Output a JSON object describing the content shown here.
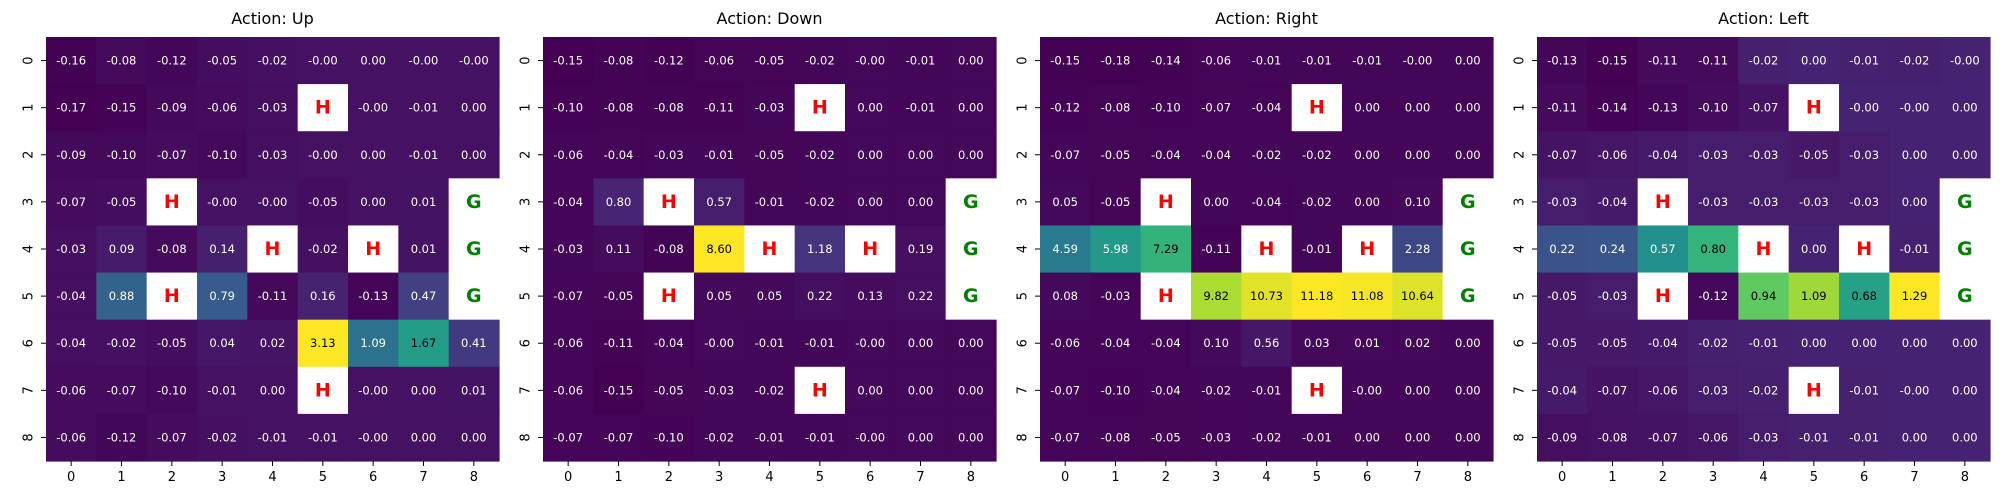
{
  "chart_data": [
    {
      "type": "heatmap",
      "title": "Action: Up",
      "x_ticks": [
        "0",
        "1",
        "2",
        "3",
        "4",
        "5",
        "6",
        "7",
        "8"
      ],
      "y_ticks": [
        "0",
        "1",
        "2",
        "3",
        "4",
        "5",
        "6",
        "7",
        "8"
      ],
      "colormap": "viridis",
      "hole_color": "#ffffff",
      "hole_label_color": "#ff0000",
      "goal_label_color": "#008000",
      "cells": [
        [
          "-0.16",
          "-0.08",
          "-0.12",
          "-0.05",
          "-0.02",
          "-0.00",
          "0.00",
          "-0.00",
          "-0.00"
        ],
        [
          "-0.17",
          "-0.15",
          "-0.09",
          "-0.06",
          "-0.03",
          "H",
          "-0.00",
          "-0.01",
          "0.00"
        ],
        [
          "-0.09",
          "-0.10",
          "-0.07",
          "-0.10",
          "-0.03",
          "-0.00",
          "0.00",
          "-0.01",
          "0.00"
        ],
        [
          "-0.07",
          "-0.05",
          "H",
          "-0.00",
          "-0.00",
          "-0.05",
          "0.00",
          "0.01",
          "G"
        ],
        [
          "-0.03",
          "0.09",
          "-0.08",
          "0.14",
          "H",
          "-0.02",
          "H",
          "0.01",
          "G"
        ],
        [
          "-0.04",
          "0.88",
          "H",
          "0.79",
          "-0.11",
          "0.16",
          "-0.13",
          "0.47",
          "G"
        ],
        [
          "-0.04",
          "-0.02",
          "-0.05",
          "0.04",
          "0.02",
          "3.13",
          "1.09",
          "1.67",
          "0.41"
        ],
        [
          "-0.06",
          "-0.07",
          "-0.10",
          "-0.01",
          "0.00",
          "H",
          "-0.00",
          "0.00",
          "0.01"
        ],
        [
          "-0.06",
          "-0.12",
          "-0.07",
          "-0.02",
          "-0.01",
          "-0.01",
          "-0.00",
          "0.00",
          "0.00"
        ]
      ]
    },
    {
      "type": "heatmap",
      "title": "Action: Down",
      "x_ticks": [
        "0",
        "1",
        "2",
        "3",
        "4",
        "5",
        "6",
        "7",
        "8"
      ],
      "y_ticks": [
        "0",
        "1",
        "2",
        "3",
        "4",
        "5",
        "6",
        "7",
        "8"
      ],
      "colormap": "viridis",
      "hole_color": "#ffffff",
      "hole_label_color": "#ff0000",
      "goal_label_color": "#008000",
      "cells": [
        [
          "-0.15",
          "-0.08",
          "-0.12",
          "-0.06",
          "-0.05",
          "-0.02",
          "-0.00",
          "-0.01",
          "0.00"
        ],
        [
          "-0.10",
          "-0.08",
          "-0.08",
          "-0.11",
          "-0.03",
          "H",
          "0.00",
          "-0.01",
          "0.00"
        ],
        [
          "-0.06",
          "-0.04",
          "-0.03",
          "-0.01",
          "-0.05",
          "-0.02",
          "0.00",
          "0.00",
          "0.00"
        ],
        [
          "-0.04",
          "0.80",
          "H",
          "0.57",
          "-0.01",
          "-0.02",
          "0.00",
          "0.00",
          "G"
        ],
        [
          "-0.03",
          "0.11",
          "-0.08",
          "8.60",
          "H",
          "1.18",
          "H",
          "0.19",
          "G"
        ],
        [
          "-0.07",
          "-0.05",
          "H",
          "0.05",
          "0.05",
          "0.22",
          "0.13",
          "0.22",
          "G"
        ],
        [
          "-0.06",
          "-0.11",
          "-0.04",
          "-0.00",
          "-0.01",
          "-0.01",
          "-0.00",
          "0.00",
          "0.00"
        ],
        [
          "-0.06",
          "-0.15",
          "-0.05",
          "-0.03",
          "-0.02",
          "H",
          "0.00",
          "0.00",
          "0.00"
        ],
        [
          "-0.07",
          "-0.07",
          "-0.10",
          "-0.02",
          "-0.01",
          "-0.01",
          "-0.00",
          "0.00",
          "0.00"
        ]
      ]
    },
    {
      "type": "heatmap",
      "title": "Action: Right",
      "x_ticks": [
        "0",
        "1",
        "2",
        "3",
        "4",
        "5",
        "6",
        "7",
        "8"
      ],
      "y_ticks": [
        "0",
        "1",
        "2",
        "3",
        "4",
        "5",
        "6",
        "7",
        "8"
      ],
      "colormap": "viridis",
      "hole_color": "#ffffff",
      "hole_label_color": "#ff0000",
      "goal_label_color": "#008000",
      "cells": [
        [
          "-0.15",
          "-0.18",
          "-0.14",
          "-0.06",
          "-0.01",
          "-0.01",
          "-0.01",
          "-0.00",
          "0.00"
        ],
        [
          "-0.12",
          "-0.08",
          "-0.10",
          "-0.07",
          "-0.04",
          "H",
          "0.00",
          "0.00",
          "0.00"
        ],
        [
          "-0.07",
          "-0.05",
          "-0.04",
          "-0.04",
          "-0.02",
          "-0.02",
          "0.00",
          "0.00",
          "0.00"
        ],
        [
          "0.05",
          "-0.05",
          "H",
          "0.00",
          "-0.04",
          "-0.02",
          "0.00",
          "0.10",
          "G"
        ],
        [
          "4.59",
          "5.98",
          "7.29",
          "-0.11",
          "H",
          "-0.01",
          "H",
          "2.28",
          "G"
        ],
        [
          "0.08",
          "-0.03",
          "H",
          "9.82",
          "10.73",
          "11.18",
          "11.08",
          "10.64",
          "G"
        ],
        [
          "-0.06",
          "-0.04",
          "-0.04",
          "0.10",
          "0.56",
          "0.03",
          "0.01",
          "0.02",
          "0.00"
        ],
        [
          "-0.07",
          "-0.10",
          "-0.04",
          "-0.02",
          "-0.01",
          "H",
          "-0.00",
          "0.00",
          "0.00"
        ],
        [
          "-0.07",
          "-0.08",
          "-0.05",
          "-0.03",
          "-0.02",
          "-0.01",
          "0.00",
          "0.00",
          "0.00"
        ]
      ]
    },
    {
      "type": "heatmap",
      "title": "Action: Left",
      "x_ticks": [
        "0",
        "1",
        "2",
        "3",
        "4",
        "5",
        "6",
        "7",
        "8"
      ],
      "y_ticks": [
        "0",
        "1",
        "2",
        "3",
        "4",
        "5",
        "6",
        "7",
        "8"
      ],
      "colormap": "viridis",
      "hole_color": "#ffffff",
      "hole_label_color": "#ff0000",
      "goal_label_color": "#008000",
      "cells": [
        [
          "-0.13",
          "-0.15",
          "-0.11",
          "-0.11",
          "-0.02",
          "0.00",
          "-0.01",
          "-0.02",
          "-0.00"
        ],
        [
          "-0.11",
          "-0.14",
          "-0.13",
          "-0.10",
          "-0.07",
          "H",
          "-0.00",
          "-0.00",
          "0.00"
        ],
        [
          "-0.07",
          "-0.06",
          "-0.04",
          "-0.03",
          "-0.03",
          "-0.05",
          "-0.03",
          "0.00",
          "0.00"
        ],
        [
          "-0.03",
          "-0.04",
          "H",
          "-0.03",
          "-0.03",
          "-0.03",
          "-0.03",
          "0.00",
          "G"
        ],
        [
          "0.22",
          "0.24",
          "0.57",
          "0.80",
          "H",
          "0.00",
          "H",
          "-0.01",
          "G"
        ],
        [
          "-0.05",
          "-0.03",
          "H",
          "-0.12",
          "0.94",
          "1.09",
          "0.68",
          "1.29",
          "G"
        ],
        [
          "-0.05",
          "-0.05",
          "-0.04",
          "-0.02",
          "-0.01",
          "0.00",
          "0.00",
          "0.00",
          "0.00"
        ],
        [
          "-0.04",
          "-0.07",
          "-0.06",
          "-0.03",
          "-0.02",
          "H",
          "-0.01",
          "-0.00",
          "0.00"
        ],
        [
          "-0.09",
          "-0.08",
          "-0.07",
          "-0.06",
          "-0.03",
          "-0.01",
          "-0.01",
          "0.00",
          "0.00"
        ]
      ]
    }
  ]
}
